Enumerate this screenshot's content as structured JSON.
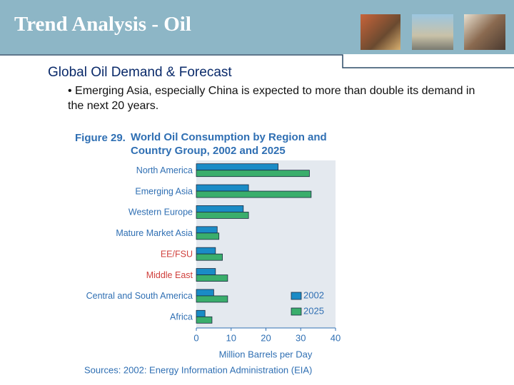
{
  "slide": {
    "title": "Trend Analysis - Oil",
    "heading": "Global Oil Demand & Forecast",
    "bullet": "• Emerging Asia, especially China is expected to more than double its demand in the next 20 years."
  },
  "chart_data": {
    "type": "bar",
    "orientation": "horizontal",
    "figure_label": "Figure 29.",
    "title": "World Oil Consumption by Region and Country Group, 2002 and 2025",
    "categories": [
      "North America",
      "Emerging Asia",
      "Western Europe",
      "Mature Market Asia",
      "EE/FSU",
      "Middle East",
      "Central and South America",
      "Africa"
    ],
    "category_colors": [
      "#2f6fb3",
      "#2f6fb3",
      "#2f6fb3",
      "#2f6fb3",
      "#d0403c",
      "#d0403c",
      "#2f6fb3",
      "#2f6fb3"
    ],
    "series": [
      {
        "name": "2002",
        "color": "#1a8bc6",
        "values": [
          23.5,
          15,
          13.5,
          6,
          5.5,
          5.5,
          5,
          2.5
        ]
      },
      {
        "name": "2025",
        "color": "#3aae6c",
        "values": [
          32.5,
          33,
          15,
          6.5,
          7.5,
          9,
          9,
          4.5
        ]
      }
    ],
    "xlim": [
      0,
      40
    ],
    "xticks": [
      0,
      10,
      20,
      30,
      40
    ],
    "xlabel": "Million Barrels per Day",
    "source": "Sources: 2002: Energy Information Administration (EIA)"
  }
}
